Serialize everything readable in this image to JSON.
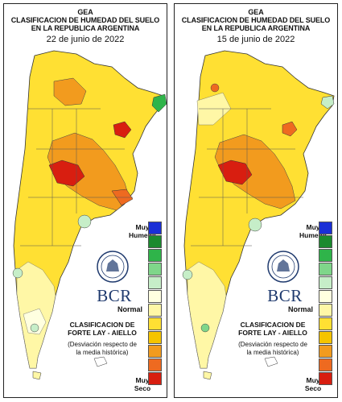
{
  "panels": [
    {
      "title_line1": "GEA",
      "title_line2": "CLASIFICACION DE HUMEDAD DEL SUELO",
      "title_line3": "EN LA REPUBLICA ARGENTINA",
      "date": "22 de junio de 2022"
    },
    {
      "title_line1": "GEA",
      "title_line2": "CLASIFICACION DE HUMEDAD DEL SUELO",
      "title_line3": "EN LA REPUBLICA ARGENTINA",
      "date": "15 de junio de 2022"
    }
  ],
  "legend": {
    "top_line1": "Muy",
    "top_line2": "Humedo",
    "middle": "Normal",
    "bottom_line1": "Muy",
    "bottom_line2": "Seco",
    "colors": [
      "#1a2fd6",
      "#1b8a2e",
      "#2fb44a",
      "#7fd68a",
      "#c6eec8",
      "#ffffe0",
      "#fff7a6",
      "#ffe033",
      "#f5c400",
      "#f29b1e",
      "#ee6a20",
      "#d81e10"
    ]
  },
  "branding": {
    "logo": "BCR",
    "seal_icon": "bcr-seal-icon"
  },
  "classification": {
    "line1": "CLASIFICACION DE",
    "line2": "FORTE LAY - AIELLO",
    "note_line1": "(Desviación respecto de",
    "note_line2": "la media histórica)"
  },
  "map_colors": {
    "very_dry": "#d81e10",
    "dry_strong": "#ee6a20",
    "dry": "#f29b1e",
    "dry_moderate": "#f5c400",
    "dry_light": "#ffe033",
    "slightly_dry": "#fff7a6",
    "normal": "#ffffe0",
    "wet_light": "#c6eec8",
    "wet": "#2fb44a"
  }
}
